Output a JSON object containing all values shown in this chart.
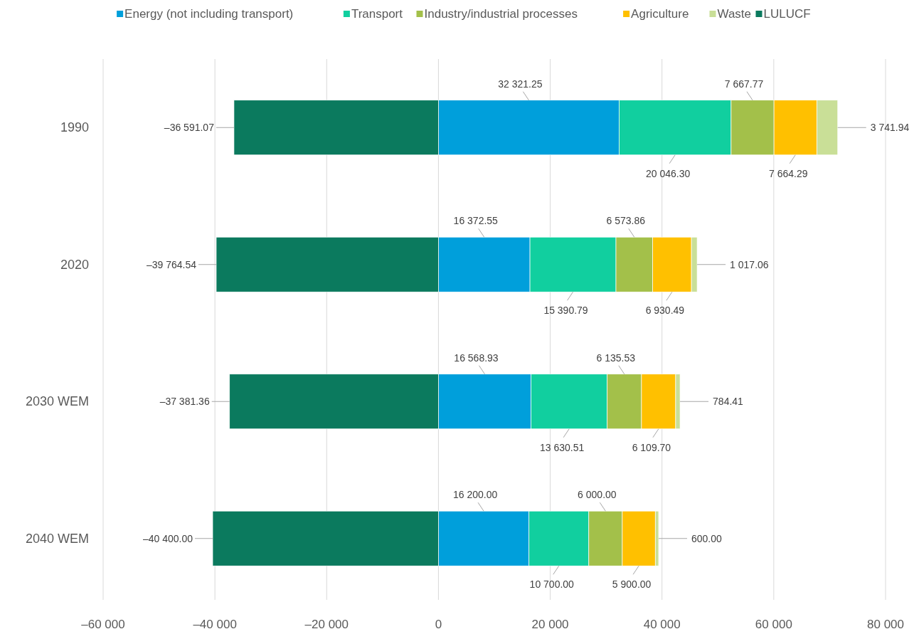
{
  "chart_data": {
    "type": "bar",
    "orientation": "horizontal",
    "stacked": true,
    "categories": [
      "1990",
      "2020",
      "2030 WEM",
      "2040 WEM"
    ],
    "series": [
      {
        "name": "Energy (not including transport)",
        "color": "#009fdb",
        "values": [
          32321.25,
          16372.55,
          16568.93,
          16200
        ],
        "value_labels": [
          "32 321.25",
          "16 372.55",
          "16 568.93",
          "16 200.00"
        ]
      },
      {
        "name": "Transport",
        "color": "#11cf9f",
        "values": [
          20046.3,
          15390.79,
          13630.51,
          10700
        ],
        "value_labels": [
          "20 046.30",
          "15 390.79",
          "13 630.51",
          "10 700.00"
        ]
      },
      {
        "name": "Industry/industrial processes",
        "color": "#a3c04a",
        "values": [
          7667.77,
          6573.86,
          6135.53,
          6000
        ],
        "value_labels": [
          "7 667.77",
          "6 573.86",
          "6 135.53",
          "6 000.00"
        ]
      },
      {
        "name": "Agriculture",
        "color": "#ffc000",
        "values": [
          7664.29,
          6930.49,
          6109.7,
          5900
        ],
        "value_labels": [
          "7 664.29",
          "6 930.49",
          "6 109.70",
          "5 900.00"
        ]
      },
      {
        "name": "Waste",
        "color": "#c9df97",
        "values": [
          3741.94,
          1017.06,
          784.41,
          600
        ],
        "value_labels": [
          "3 741.94",
          "1 017.06",
          "784.41",
          "600.00"
        ]
      },
      {
        "name": "LULUCF",
        "color": "#0b7a5e",
        "values": [
          -36591.07,
          -39764.54,
          -37381.36,
          -40400
        ],
        "value_labels": [
          "–36 591.07",
          "–39 764.54",
          "–37 381.36",
          "–40 400.00"
        ]
      }
    ],
    "xlim": [
      -60000,
      80000
    ],
    "xticks": [
      {
        "value": -60000,
        "label": "–60 000"
      },
      {
        "value": -40000,
        "label": "–40 000"
      },
      {
        "value": -20000,
        "label": "–20 000"
      },
      0,
      {
        "value": 20000,
        "label": "20 000"
      },
      {
        "value": 40000,
        "label": "40 000"
      },
      {
        "value": 60000,
        "label": "60 000"
      },
      {
        "value": 80000,
        "label": "80 000"
      }
    ],
    "grid": "x",
    "legend": "top"
  }
}
